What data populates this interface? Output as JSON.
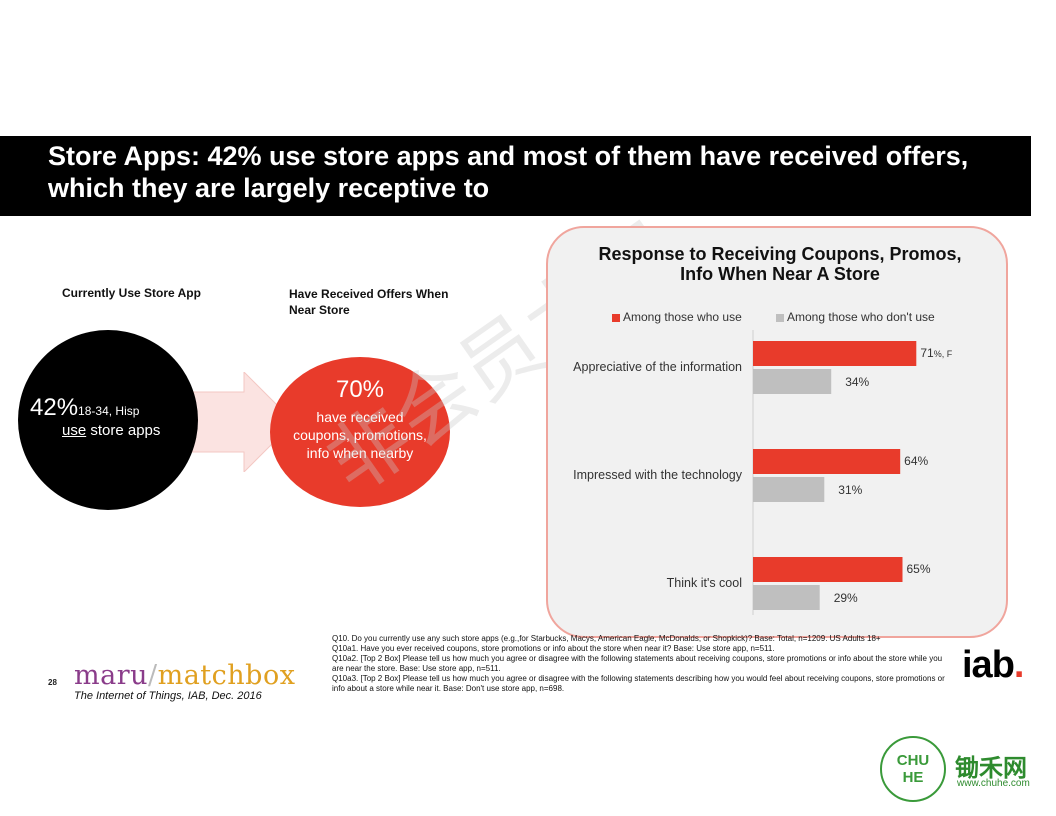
{
  "slide": {
    "title": "Store Apps:  42% use store apps and most of them have received offers, which they are largely receptive to",
    "left_label": "Currently Use Store App",
    "mid_label": "Have Received Offers When Near Store",
    "black_circle": {
      "pct": "42%",
      "sub": "18-34, Hisp",
      "use": "use",
      "rest": " store apps"
    },
    "red_circle": {
      "pct": "70%",
      "desc": "have received coupons, promotions, info when nearby"
    },
    "watermark": "非会员水印"
  },
  "chart_data": {
    "type": "bar",
    "title": "Response to Receiving Coupons, Promos, Info When Near A Store",
    "categories": [
      "Appreciative of the information",
      "Impressed with the technology",
      "Think it's cool"
    ],
    "series": [
      {
        "name": "Among those who use",
        "values": [
          71,
          64,
          65
        ],
        "color": "#e83b2b"
      },
      {
        "name": "Among those who don't use",
        "values": [
          34,
          31,
          29
        ],
        "color": "#bfbfbf"
      }
    ],
    "data_labels": [
      [
        "71%",
        "34%"
      ],
      [
        "64%",
        "31%"
      ],
      [
        "65%",
        "29%"
      ]
    ],
    "label_suffix": {
      "series": 0,
      "category": 0,
      "text": ", F"
    },
    "legend": "top",
    "xlim": [
      0,
      100
    ],
    "grid": false
  },
  "footnotes": [
    "Q10. Do you currently use any such store apps (e.g.,for Starbucks, Macys, American Eagle, McDonalds, or Shopkick)? Base: Total, n=1209.  US Adults 18+",
    "Q10a1. Have you ever received coupons, store promotions or info about the store when near it? Base: Use store app, n=511.",
    "Q10a2. [Top 2 Box] Please tell us how much you agree or disagree with the following statements about receiving coupons, store promotions or info about the store while you are near the store. Base: Use store app, n=511.",
    "Q10a3. [Top 2 Box] Please tell us how much you agree or disagree with the following statements describing how you would feel about receiving coupons, store promotions or info about a store while near it. Base: Don't use store app, n=698."
  ],
  "footer": {
    "page_num": "28",
    "logo_maru": "maru",
    "logo_slash": "/",
    "logo_matchbox": "matchbox",
    "source": "The Internet of Things, IAB, Dec. 2016",
    "iab": "iab",
    "iab_dot": "."
  },
  "chuhe": {
    "badge": "CHU HE",
    "name": "锄禾网",
    "url": "www.chuhe.com"
  }
}
